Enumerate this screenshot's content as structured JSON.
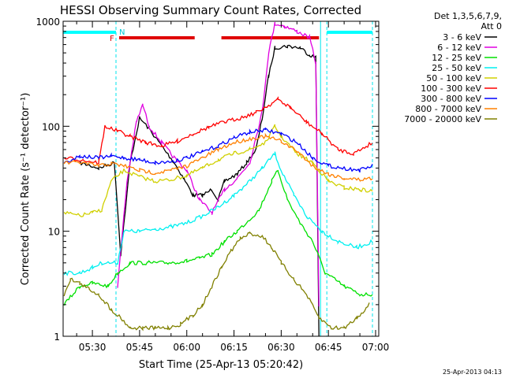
{
  "chart_data": {
    "type": "line",
    "title": "HESSI Observing Summary Count Rates, Corrected",
    "xlabel": "Start Time (25-Apr-13 05:20:42)",
    "ylabel": "Corrected Count Rate (s⁻¹ detector⁻¹)",
    "y_scale": "log",
    "ylim": [
      1,
      1000
    ],
    "xlim": [
      "05:20:42",
      "07:01:00"
    ],
    "x_ticks": [
      "05:30",
      "05:45",
      "06:00",
      "06:15",
      "06:30",
      "06:45",
      "07:00"
    ],
    "y_ticks": [
      "1",
      "10",
      "100",
      "1000"
    ],
    "legend_header": [
      "Det 1,3,5,6,7,9,",
      "Att 0"
    ],
    "legend_position": "right",
    "footer_timestamp": "25-Apr-2013 04:13",
    "flags": {
      "N_label": "N",
      "F_label": "F",
      "night": [
        [
          "05:20:42",
          "05:37:30"
        ],
        [
          "06:44:30",
          "06:59:00"
        ]
      ],
      "flare": [
        [
          "05:38:30",
          "06:02:30"
        ],
        [
          "06:11:00",
          "06:42:00"
        ]
      ],
      "night_color": "#00ffff",
      "flare_color": "#e00000"
    },
    "vertical_markers": [
      {
        "time": "05:20:42",
        "color": "#00e5ee",
        "style": "solid"
      },
      {
        "time": "05:37:30",
        "color": "#00e5ee",
        "style": "dashed"
      },
      {
        "time": "06:42:30",
        "color": "#00e5ee",
        "style": "solid"
      },
      {
        "time": "06:44:30",
        "color": "#00e5ee",
        "style": "dashed"
      },
      {
        "time": "06:59:00",
        "color": "#00e5ee",
        "style": "dashed"
      }
    ],
    "series": [
      {
        "name": "3 - 6 keV",
        "color": "#000000",
        "points": [
          [
            "05:26",
            45
          ],
          [
            "05:32",
            40
          ],
          [
            "05:37",
            45
          ],
          [
            "05:39",
            6
          ],
          [
            "05:42",
            45
          ],
          [
            "05:45",
            120
          ],
          [
            "05:48",
            95
          ],
          [
            "05:52",
            65
          ],
          [
            "05:56",
            45
          ],
          [
            "05:59",
            32
          ],
          [
            "06:02",
            22
          ],
          [
            "06:05",
            22
          ],
          [
            "06:08",
            25
          ],
          [
            "06:10",
            20
          ],
          [
            "06:12",
            30
          ],
          [
            "06:16",
            35
          ],
          [
            "06:19",
            45
          ],
          [
            "06:22",
            60
          ],
          [
            "06:24",
            120
          ],
          [
            "06:26",
            300
          ],
          [
            "06:28",
            560
          ],
          [
            "06:32",
            580
          ],
          [
            "06:36",
            560
          ],
          [
            "06:39",
            480
          ],
          [
            "06:41",
            450
          ],
          [
            "06:42",
            1
          ]
        ]
      },
      {
        "name": "6 - 12 keV",
        "color": "#e000e0",
        "points": [
          [
            "05:38",
            3
          ],
          [
            "05:41",
            30
          ],
          [
            "05:44",
            110
          ],
          [
            "05:46",
            160
          ],
          [
            "05:48",
            100
          ],
          [
            "05:52",
            70
          ],
          [
            "05:56",
            50
          ],
          [
            "06:00",
            38
          ],
          [
            "06:04",
            20
          ],
          [
            "06:08",
            15
          ],
          [
            "06:12",
            25
          ],
          [
            "06:16",
            32
          ],
          [
            "06:20",
            45
          ],
          [
            "06:24",
            140
          ],
          [
            "06:26",
            500
          ],
          [
            "06:28",
            950
          ],
          [
            "06:31",
            900
          ],
          [
            "06:35",
            800
          ],
          [
            "06:39",
            700
          ],
          [
            "06:41",
            400
          ],
          [
            "06:42",
            2
          ]
        ]
      },
      {
        "name": "12 - 25 keV",
        "color": "#00e000",
        "points": [
          [
            "05:21",
            2
          ],
          [
            "05:26",
            3
          ],
          [
            "05:30",
            3.2
          ],
          [
            "05:35",
            3
          ],
          [
            "05:38",
            4
          ],
          [
            "05:42",
            5
          ],
          [
            "05:48",
            5
          ],
          [
            "05:54",
            5
          ],
          [
            "06:00",
            5.2
          ],
          [
            "06:04",
            5.5
          ],
          [
            "06:08",
            6
          ],
          [
            "06:12",
            8
          ],
          [
            "06:16",
            10
          ],
          [
            "06:20",
            13
          ],
          [
            "06:23",
            16
          ],
          [
            "06:27",
            30
          ],
          [
            "06:29",
            38
          ],
          [
            "06:32",
            20
          ],
          [
            "06:36",
            12
          ],
          [
            "06:40",
            8
          ],
          [
            "06:44",
            4
          ],
          [
            "06:50",
            3
          ],
          [
            "06:55",
            2.5
          ],
          [
            "06:59",
            2.5
          ]
        ]
      },
      {
        "name": "25 - 50 keV",
        "color": "#00f0f0",
        "points": [
          [
            "05:21",
            4
          ],
          [
            "05:26",
            4
          ],
          [
            "05:30",
            4.5
          ],
          [
            "05:33",
            5
          ],
          [
            "05:38",
            5
          ],
          [
            "05:40",
            10
          ],
          [
            "05:45",
            10
          ],
          [
            "05:50",
            10.5
          ],
          [
            "05:55",
            11
          ],
          [
            "06:00",
            12
          ],
          [
            "06:05",
            14
          ],
          [
            "06:10",
            17
          ],
          [
            "06:15",
            22
          ],
          [
            "06:20",
            30
          ],
          [
            "06:24",
            40
          ],
          [
            "06:28",
            55
          ],
          [
            "06:30",
            38
          ],
          [
            "06:34",
            22
          ],
          [
            "06:38",
            14
          ],
          [
            "06:43",
            10
          ],
          [
            "06:48",
            8
          ],
          [
            "06:54",
            7
          ],
          [
            "06:59",
            8
          ]
        ]
      },
      {
        "name": "50 - 100 keV",
        "color": "#d0d000",
        "points": [
          [
            "05:21",
            15
          ],
          [
            "05:26",
            14
          ],
          [
            "05:30",
            15
          ],
          [
            "05:33",
            16
          ],
          [
            "05:36",
            30
          ],
          [
            "05:40",
            38
          ],
          [
            "05:45",
            33
          ],
          [
            "05:50",
            30
          ],
          [
            "05:55",
            31
          ],
          [
            "06:00",
            34
          ],
          [
            "06:05",
            40
          ],
          [
            "06:10",
            48
          ],
          [
            "06:15",
            55
          ],
          [
            "06:20",
            60
          ],
          [
            "06:25",
            70
          ],
          [
            "06:28",
            100
          ],
          [
            "06:30",
            80
          ],
          [
            "06:35",
            55
          ],
          [
            "06:40",
            45
          ],
          [
            "06:45",
            30
          ],
          [
            "06:50",
            26
          ],
          [
            "06:55",
            25
          ],
          [
            "06:59",
            24
          ]
        ]
      },
      {
        "name": "100 - 300 keV",
        "color": "#ff0000",
        "points": [
          [
            "05:21",
            50
          ],
          [
            "05:26",
            48
          ],
          [
            "05:32",
            45
          ],
          [
            "05:34",
            100
          ],
          [
            "05:38",
            90
          ],
          [
            "05:42",
            80
          ],
          [
            "05:47",
            70
          ],
          [
            "05:52",
            65
          ],
          [
            "05:57",
            72
          ],
          [
            "06:02",
            85
          ],
          [
            "06:07",
            98
          ],
          [
            "06:12",
            110
          ],
          [
            "06:17",
            120
          ],
          [
            "06:22",
            135
          ],
          [
            "06:27",
            165
          ],
          [
            "06:29",
            180
          ],
          [
            "06:33",
            150
          ],
          [
            "06:38",
            110
          ],
          [
            "06:43",
            85
          ],
          [
            "06:48",
            60
          ],
          [
            "06:53",
            55
          ],
          [
            "06:59",
            70
          ]
        ]
      },
      {
        "name": "300 - 800 keV",
        "color": "#0000ff",
        "points": [
          [
            "05:21",
            45
          ],
          [
            "05:26",
            52
          ],
          [
            "05:32",
            50
          ],
          [
            "05:36",
            52
          ],
          [
            "05:40",
            50
          ],
          [
            "05:45",
            48
          ],
          [
            "05:50",
            45
          ],
          [
            "05:55",
            46
          ],
          [
            "06:00",
            50
          ],
          [
            "06:05",
            57
          ],
          [
            "06:10",
            65
          ],
          [
            "06:15",
            78
          ],
          [
            "06:20",
            88
          ],
          [
            "06:25",
            92
          ],
          [
            "06:30",
            85
          ],
          [
            "06:35",
            70
          ],
          [
            "06:40",
            50
          ],
          [
            "06:45",
            42
          ],
          [
            "06:50",
            40
          ],
          [
            "06:55",
            38
          ],
          [
            "06:59",
            42
          ]
        ]
      },
      {
        "name": "800 - 7000 keV",
        "color": "#ff8000",
        "points": [
          [
            "05:21",
            45
          ],
          [
            "05:26",
            45
          ],
          [
            "05:32",
            42
          ],
          [
            "05:36",
            44
          ],
          [
            "05:40",
            42
          ],
          [
            "05:45",
            38
          ],
          [
            "05:50",
            36
          ],
          [
            "05:55",
            38
          ],
          [
            "06:00",
            42
          ],
          [
            "06:05",
            50
          ],
          [
            "06:10",
            60
          ],
          [
            "06:15",
            70
          ],
          [
            "06:20",
            76
          ],
          [
            "06:25",
            80
          ],
          [
            "06:30",
            72
          ],
          [
            "06:35",
            58
          ],
          [
            "06:40",
            42
          ],
          [
            "06:45",
            35
          ],
          [
            "06:50",
            32
          ],
          [
            "06:55",
            31
          ],
          [
            "06:59",
            32
          ]
        ]
      },
      {
        "name": "7000 - 20000 keV",
        "color": "#808000",
        "points": [
          [
            "05:21",
            2.5
          ],
          [
            "05:23",
            3.5
          ],
          [
            "05:26",
            3.2
          ],
          [
            "05:29",
            2.8
          ],
          [
            "05:32",
            2.5
          ],
          [
            "05:36",
            1.8
          ],
          [
            "05:39",
            1.5
          ],
          [
            "05:42",
            1.2
          ],
          [
            "05:46",
            1.2
          ],
          [
            "05:50",
            1.2
          ],
          [
            "05:54",
            1.2
          ],
          [
            "05:58",
            1.3
          ],
          [
            "06:02",
            1.6
          ],
          [
            "06:05",
            2
          ],
          [
            "06:08",
            3
          ],
          [
            "06:11",
            4.5
          ],
          [
            "06:14",
            6.5
          ],
          [
            "06:17",
            8.5
          ],
          [
            "06:20",
            9.5
          ],
          [
            "06:24",
            9
          ],
          [
            "06:27",
            7
          ],
          [
            "06:30",
            5
          ],
          [
            "06:34",
            3.5
          ],
          [
            "06:38",
            2.5
          ],
          [
            "06:42",
            1.5
          ],
          [
            "06:46",
            1.2
          ],
          [
            "06:50",
            1.2
          ],
          [
            "06:54",
            1.5
          ],
          [
            "06:58",
            2
          ]
        ]
      }
    ]
  }
}
